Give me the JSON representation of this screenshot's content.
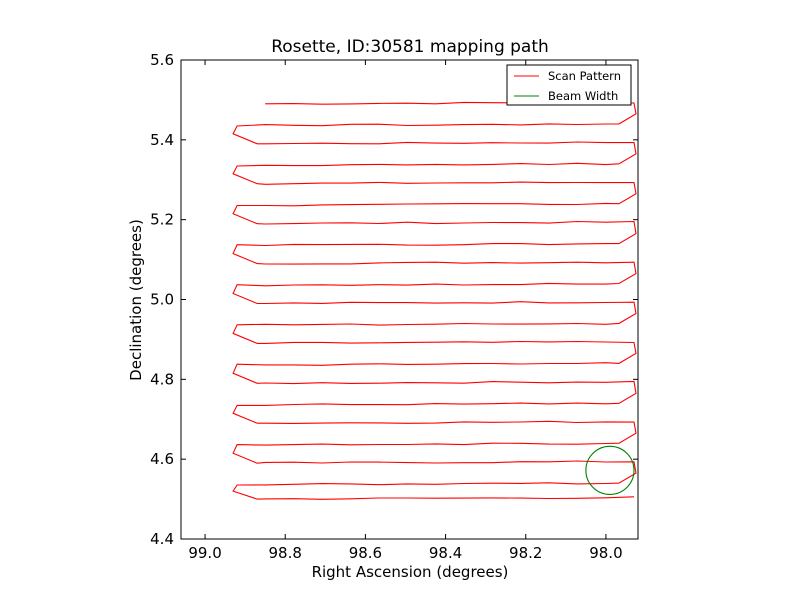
{
  "chart_data": {
    "type": "line",
    "title": "Rosette, ID:30581 mapping path",
    "xlabel": "Right Ascension (degrees)",
    "ylabel": "Declination (degrees)",
    "xlim": [
      99.06,
      97.92
    ],
    "ylim": [
      4.4,
      5.6
    ],
    "x_inverted": true,
    "xticks": [
      99.0,
      98.8,
      98.6,
      98.4,
      98.2,
      98.0
    ],
    "xtick_labels": [
      "99.0",
      "98.8",
      "98.6",
      "98.4",
      "98.2",
      "98.0"
    ],
    "yticks": [
      4.4,
      4.6,
      4.8,
      5.0,
      5.2,
      5.4,
      5.6
    ],
    "ytick_labels": [
      "4.4",
      "4.6",
      "4.8",
      "5.0",
      "5.2",
      "5.4",
      "5.6"
    ],
    "grid": false,
    "legend": {
      "placement": "top-right",
      "entries": [
        {
          "label": "Scan Pattern",
          "color": "#ff0000"
        },
        {
          "label": "Beam Width",
          "color": "#008000"
        }
      ]
    },
    "series": [
      {
        "name": "Scan Pattern",
        "color": "#ff0000",
        "east_ra": 97.93,
        "west_ra": 98.92,
        "start_ra": 98.85,
        "scan_rows_dec": [
          5.49,
          5.44,
          5.39,
          5.34,
          5.29,
          5.24,
          5.19,
          5.14,
          5.09,
          5.04,
          4.99,
          4.94,
          4.89,
          4.84,
          4.79,
          4.74,
          4.69,
          4.64,
          4.59,
          4.54,
          4.5
        ]
      },
      {
        "name": "Beam Width",
        "color": "#008000",
        "center_ra": 97.99,
        "center_dec": 4.572,
        "radius_deg": 0.06
      }
    ]
  }
}
